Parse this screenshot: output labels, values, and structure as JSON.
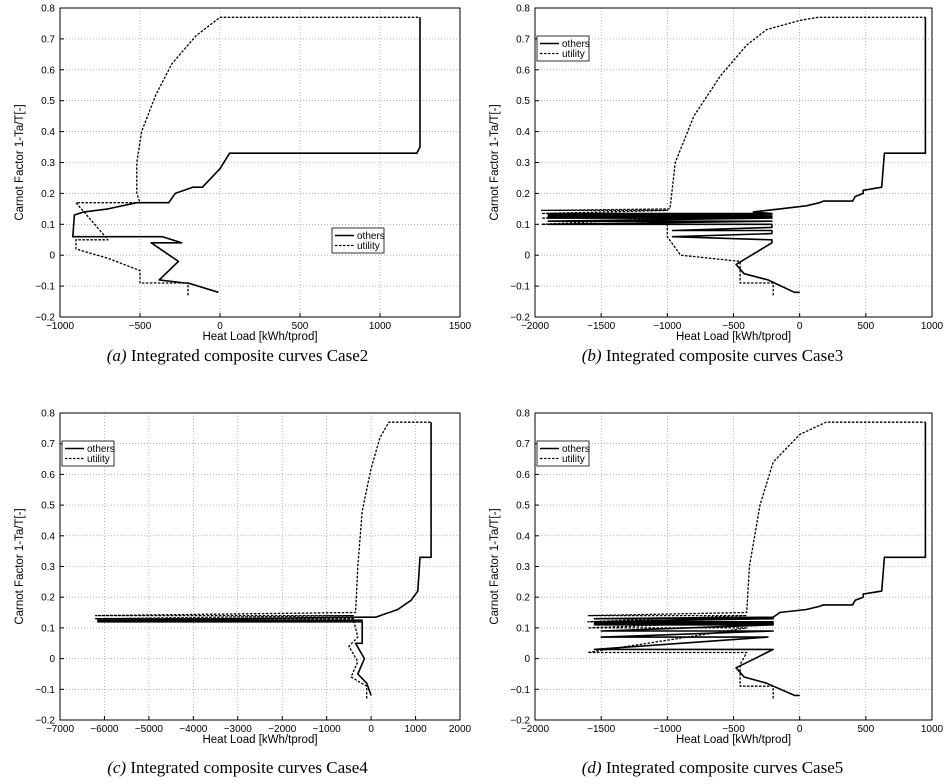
{
  "captions": [
    {
      "label": "(a)",
      "text": "Integrated composite curves Case2"
    },
    {
      "label": "(b)",
      "text": "Integrated composite curves Case3"
    },
    {
      "label": "(c)",
      "text": "Integrated composite curves Case4"
    },
    {
      "label": "(d)",
      "text": "Integrated composite curves Case5"
    }
  ],
  "chart_data": [
    {
      "type": "line",
      "xlabel": "Heat Load [kWh/tprod]",
      "ylabel": "Carnot Factor 1-Ta/T[-]",
      "xlim": [
        -1000,
        1500
      ],
      "ylim": [
        -0.2,
        0.8
      ],
      "xticks": [
        -1000,
        -500,
        0,
        500,
        1000,
        1500
      ],
      "yticks": [
        -0.2,
        -0.1,
        0,
        0.1,
        0.2,
        0.3,
        0.4,
        0.5,
        0.6,
        0.7,
        0.8
      ],
      "grid": true,
      "legend_position": "center-right",
      "series": [
        {
          "name": "others",
          "style": "solid",
          "x": [
            -10,
            -200,
            -220,
            -380,
            -260,
            -430,
            -240,
            -360,
            -920,
            -910,
            -850,
            -700,
            -520,
            -320,
            -280,
            -170,
            -110,
            0,
            60,
            100,
            1230,
            1250,
            1250
          ],
          "y": [
            -0.12,
            -0.09,
            -0.09,
            -0.08,
            -0.02,
            0.04,
            0.04,
            0.06,
            0.06,
            0.13,
            0.14,
            0.15,
            0.17,
            0.17,
            0.2,
            0.22,
            0.22,
            0.28,
            0.33,
            0.33,
            0.33,
            0.35,
            0.77
          ]
        },
        {
          "name": "utility",
          "style": "dashed",
          "x": [
            -200,
            -200,
            -500,
            -500,
            -700,
            -900,
            -900,
            -700,
            -900,
            -500,
            -520,
            -520,
            -490,
            -400,
            -300,
            -150,
            0,
            40,
            1250
          ],
          "y": [
            -0.13,
            -0.09,
            -0.09,
            -0.05,
            -0.01,
            0.02,
            0.05,
            0.05,
            0.17,
            0.17,
            0.2,
            0.3,
            0.4,
            0.52,
            0.62,
            0.71,
            0.77,
            0.77,
            0.77
          ]
        }
      ]
    },
    {
      "type": "line",
      "xlabel": "Heat Load [kWh/tprod]",
      "ylabel": "Carnot Factor 1-Ta/T[-]",
      "xlim": [
        -2000,
        1000
      ],
      "ylim": [
        -0.2,
        0.8
      ],
      "xticks": [
        -2000,
        -1500,
        -1000,
        -500,
        0,
        500,
        1000
      ],
      "yticks": [
        -0.2,
        -0.1,
        0,
        0.1,
        0.2,
        0.3,
        0.4,
        0.5,
        0.6,
        0.7,
        0.8
      ],
      "grid": true,
      "legend_position": "top-left",
      "series": [
        {
          "name": "others",
          "style": "solid",
          "x": [
            0,
            -40,
            -240,
            -420,
            -480,
            -210,
            -210,
            -960,
            -210,
            -210,
            -960,
            -210,
            -210,
            -1900,
            -210,
            -1900,
            -210,
            -1900,
            -210,
            -1900,
            -210,
            -1900,
            -210,
            -1900,
            -210,
            -350,
            -150,
            50,
            150,
            180,
            400,
            420,
            480,
            480,
            620,
            640,
            950,
            950
          ],
          "y": [
            -0.12,
            -0.12,
            -0.08,
            -0.06,
            -0.03,
            0.04,
            0.05,
            0.06,
            0.07,
            0.08,
            0.08,
            0.09,
            0.1,
            0.1,
            0.11,
            0.11,
            0.12,
            0.12,
            0.125,
            0.125,
            0.13,
            0.13,
            0.135,
            0.135,
            0.135,
            0.14,
            0.15,
            0.16,
            0.17,
            0.175,
            0.175,
            0.19,
            0.2,
            0.21,
            0.22,
            0.33,
            0.33,
            0.77
          ]
        },
        {
          "name": "utility",
          "style": "dashed",
          "x": [
            -200,
            -200,
            -450,
            -450,
            -900,
            -1000,
            -1000,
            -1950,
            -1000,
            -1950,
            -1000,
            -1950,
            -1000,
            -1950,
            -980,
            -940,
            -800,
            -600,
            -400,
            -250,
            0,
            140,
            950
          ],
          "y": [
            -0.13,
            -0.09,
            -0.09,
            -0.02,
            0.0,
            0.06,
            0.1,
            0.1,
            0.12,
            0.12,
            0.135,
            0.135,
            0.145,
            0.145,
            0.15,
            0.3,
            0.45,
            0.58,
            0.68,
            0.73,
            0.76,
            0.77,
            0.77
          ]
        }
      ]
    },
    {
      "type": "line",
      "xlabel": "Heat Load [kWh/tprod]",
      "ylabel": "Carnot Factor 1-Ta/T[-]",
      "xlim": [
        -7000,
        2000
      ],
      "ylim": [
        -0.2,
        0.8
      ],
      "xticks": [
        -7000,
        -6000,
        -5000,
        -4000,
        -3000,
        -2000,
        -1000,
        0,
        1000,
        2000
      ],
      "yticks": [
        -0.2,
        -0.1,
        0,
        0.1,
        0.2,
        0.3,
        0.4,
        0.5,
        0.6,
        0.7,
        0.8
      ],
      "grid": true,
      "legend_position": "top-left",
      "series": [
        {
          "name": "others",
          "style": "solid",
          "x": [
            0,
            -100,
            -300,
            -150,
            -350,
            -200,
            -200,
            -6150,
            -200,
            -6150,
            -200,
            100,
            600,
            750,
            900,
            950,
            1050,
            1100,
            1350,
            1350
          ],
          "y": [
            -0.12,
            -0.08,
            -0.05,
            0.0,
            0.05,
            0.05,
            0.12,
            0.12,
            0.125,
            0.125,
            0.135,
            0.135,
            0.16,
            0.175,
            0.19,
            0.2,
            0.22,
            0.33,
            0.33,
            0.77
          ]
        },
        {
          "name": "utility",
          "style": "dashed",
          "x": [
            -100,
            -100,
            -450,
            -300,
            -500,
            -300,
            -400,
            -6200,
            -400,
            -6200,
            -350,
            -300,
            -200,
            0,
            200,
            400,
            1350
          ],
          "y": [
            -0.13,
            -0.09,
            -0.06,
            -0.01,
            0.04,
            0.07,
            0.13,
            0.13,
            0.14,
            0.14,
            0.15,
            0.3,
            0.48,
            0.62,
            0.72,
            0.77,
            0.77
          ]
        }
      ]
    },
    {
      "type": "line",
      "xlabel": "Heat Load [kWh/tprod]",
      "ylabel": "Carnot Factor 1-Ta/T[-]",
      "xlim": [
        -2000,
        1000
      ],
      "ylim": [
        -0.2,
        0.8
      ],
      "xticks": [
        -2000,
        -1500,
        -1000,
        -500,
        0,
        500,
        1000
      ],
      "yticks": [
        -0.2,
        -0.1,
        0,
        0.1,
        0.2,
        0.3,
        0.4,
        0.5,
        0.6,
        0.7,
        0.8
      ],
      "grid": true,
      "legend_position": "top-left",
      "series": [
        {
          "name": "others",
          "style": "solid",
          "x": [
            0,
            -40,
            -250,
            -420,
            -480,
            -200,
            -240,
            -1550,
            -240,
            -1500,
            -200,
            -1500,
            -200,
            -1550,
            -200,
            -1550,
            -200,
            -1550,
            -200,
            -1550,
            -200,
            -150,
            50,
            150,
            180,
            400,
            420,
            480,
            480,
            620,
            640,
            950,
            950
          ],
          "y": [
            -0.12,
            -0.12,
            -0.08,
            -0.06,
            -0.03,
            0.03,
            0.03,
            0.03,
            0.07,
            0.07,
            0.09,
            0.09,
            0.11,
            0.11,
            0.115,
            0.115,
            0.12,
            0.12,
            0.13,
            0.13,
            0.135,
            0.15,
            0.16,
            0.17,
            0.175,
            0.175,
            0.19,
            0.2,
            0.21,
            0.22,
            0.33,
            0.33,
            0.77
          ]
        },
        {
          "name": "utility",
          "style": "dashed",
          "x": [
            -200,
            -200,
            -450,
            -450,
            -400,
            -1600,
            -400,
            -1600,
            -400,
            -1600,
            -400,
            -1600,
            -400,
            -380,
            -300,
            -200,
            0,
            200,
            950
          ],
          "y": [
            -0.13,
            -0.09,
            -0.09,
            -0.02,
            0.02,
            0.02,
            0.1,
            0.1,
            0.12,
            0.12,
            0.14,
            0.14,
            0.15,
            0.3,
            0.5,
            0.64,
            0.73,
            0.77,
            0.77
          ]
        }
      ]
    }
  ]
}
